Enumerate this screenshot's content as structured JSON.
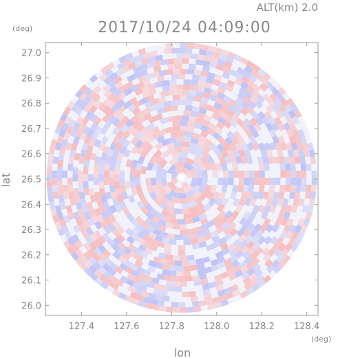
{
  "header": {
    "altitude_label": "ALT(km)  2.0",
    "timestamp": "2017/10/24 04:09:00"
  },
  "chart_data": {
    "type": "heatmap",
    "title": "2017/10/24 04:09:00",
    "xlabel": "lon",
    "ylabel": "lat",
    "x_unit": "(deg)",
    "y_unit": "(deg)",
    "xlim": [
      127.24,
      128.45
    ],
    "ylim": [
      25.96,
      27.04
    ],
    "x_ticks": [
      "127.4",
      "127.6",
      "127.8",
      "128.0",
      "128.2",
      "128.4"
    ],
    "x_tick_values": [
      127.4,
      127.6,
      127.8,
      128.0,
      128.2,
      128.4
    ],
    "y_ticks": [
      "27.0",
      "26.9",
      "26.8",
      "26.7",
      "26.6",
      "26.5",
      "26.4",
      "26.3",
      "26.2",
      "26.1",
      "26.0"
    ],
    "y_tick_values": [
      27.0,
      26.9,
      26.8,
      26.7,
      26.6,
      26.5,
      26.4,
      26.3,
      26.2,
      26.1,
      26.0
    ],
    "center": {
      "lon": 127.845,
      "lat": 26.505
    },
    "radius_deg_lon": 0.6,
    "colors": {
      "positive": "#f7b7b7",
      "negative": "#b9bdf4",
      "neutral": "#f2f2fb",
      "axis": "#999999",
      "text": "#888888"
    }
  }
}
